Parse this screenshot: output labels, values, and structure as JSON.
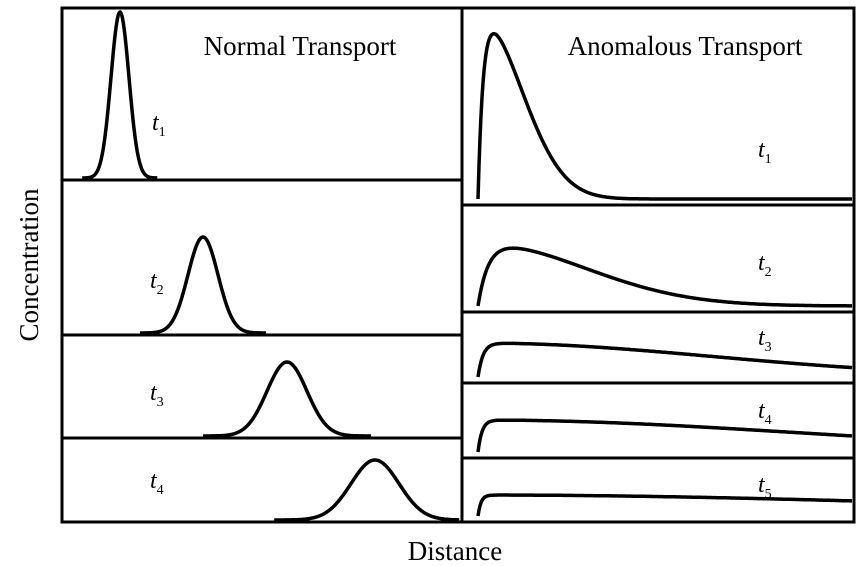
{
  "left_title": "Normal Transport",
  "right_title": "Anomalous Transport",
  "y_label": "Concentration",
  "x_label": "Distance",
  "left_panels": [
    {
      "base": "t",
      "sub": "1"
    },
    {
      "base": "t",
      "sub": "2"
    },
    {
      "base": "t",
      "sub": "3"
    },
    {
      "base": "t",
      "sub": "4"
    }
  ],
  "right_panels": [
    {
      "base": "t",
      "sub": "1"
    },
    {
      "base": "t",
      "sub": "2"
    },
    {
      "base": "t",
      "sub": "3"
    },
    {
      "base": "t",
      "sub": "4"
    },
    {
      "base": "t",
      "sub": "5"
    }
  ]
}
